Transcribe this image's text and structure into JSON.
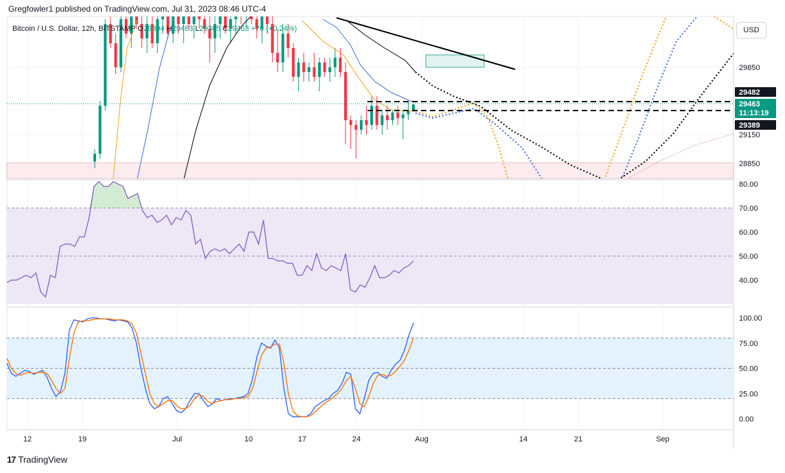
{
  "header": {
    "publish_line": "Gregfowler1 published on TradingView.com, Jul 31, 2023 08:46 UTC-4",
    "symbol": "Bitcoin / U.S. Dollar, 12h, BITSTAMP",
    "o_label": "O",
    "o_value": "29394",
    "h_label": "H",
    "h_value": "29463",
    "l_label": "L",
    "l_value": "29385",
    "c_label": "C",
    "c_value": "29463",
    "change": "+70 (+0.24%)",
    "currency": "USD"
  },
  "footer": {
    "brand": "TradingView",
    "logo_icon": "tradingview-logo-icon"
  },
  "colors": {
    "up": "#089981",
    "down": "#f23645",
    "rsi": "#7e57c2",
    "rsi_band": "#ede7f6",
    "stoch_k": "#2962ff",
    "stoch_d": "#ff6d00",
    "stoch_band": "#e3f2fd",
    "sma_fast": "#f7a21b",
    "sma_mid": "#3d6fe0",
    "sma_slow": "#000000",
    "forecast_red": "#e0606a",
    "tag_dark": "#131722",
    "tag_current": "#089981"
  },
  "chart_data": [
    {
      "type": "candlestick",
      "pane": "price",
      "x_ticks": [
        "12",
        "19",
        "Jul",
        "10",
        "17",
        "24",
        "Aug",
        "14",
        "21",
        "Sep"
      ],
      "y_ticks": [
        "29850",
        "29150",
        "28850"
      ],
      "price_tags": [
        {
          "label": "29482",
          "style": "dark"
        },
        {
          "label": "29463",
          "sublabel": "11:13:19",
          "style": "current"
        },
        {
          "label": "29389",
          "style": "dark"
        }
      ],
      "levels": [
        29482,
        29389
      ],
      "candles": [
        {
          "o": 28870,
          "h": 29000,
          "l": 28800,
          "c": 28950
        },
        {
          "o": 28950,
          "h": 29500,
          "l": 28900,
          "c": 29450
        },
        {
          "o": 29450,
          "h": 30350,
          "l": 29400,
          "c": 30300
        },
        {
          "o": 30300,
          "h": 30500,
          "l": 30050,
          "c": 30100
        },
        {
          "o": 30100,
          "h": 30200,
          "l": 29780,
          "c": 29850
        },
        {
          "o": 29850,
          "h": 30400,
          "l": 29800,
          "c": 30350
        },
        {
          "o": 30350,
          "h": 30500,
          "l": 30150,
          "c": 30200
        },
        {
          "o": 30200,
          "h": 30500,
          "l": 30050,
          "c": 30400
        },
        {
          "o": 30400,
          "h": 30550,
          "l": 30250,
          "c": 30300
        },
        {
          "o": 30300,
          "h": 30450,
          "l": 30050,
          "c": 30150
        },
        {
          "o": 30150,
          "h": 30400,
          "l": 30000,
          "c": 30300
        },
        {
          "o": 30300,
          "h": 30500,
          "l": 30050,
          "c": 30100
        },
        {
          "o": 30100,
          "h": 30450,
          "l": 30000,
          "c": 30350
        },
        {
          "o": 30350,
          "h": 30550,
          "l": 30200,
          "c": 30450
        },
        {
          "o": 30450,
          "h": 30550,
          "l": 30150,
          "c": 30200
        },
        {
          "o": 30200,
          "h": 30500,
          "l": 30100,
          "c": 30380
        },
        {
          "o": 30380,
          "h": 30550,
          "l": 30200,
          "c": 30300
        },
        {
          "o": 30300,
          "h": 30550,
          "l": 30100,
          "c": 30450
        },
        {
          "o": 30450,
          "h": 30550,
          "l": 30250,
          "c": 30300
        },
        {
          "o": 30300,
          "h": 30500,
          "l": 30150,
          "c": 30400
        },
        {
          "o": 30400,
          "h": 30550,
          "l": 30250,
          "c": 30350
        },
        {
          "o": 30350,
          "h": 30500,
          "l": 30200,
          "c": 30250
        },
        {
          "o": 30250,
          "h": 30500,
          "l": 29900,
          "c": 30150
        },
        {
          "o": 30150,
          "h": 30400,
          "l": 30000,
          "c": 30300
        },
        {
          "o": 30300,
          "h": 30550,
          "l": 30150,
          "c": 30400
        },
        {
          "o": 30400,
          "h": 30550,
          "l": 30200,
          "c": 30250
        },
        {
          "o": 30250,
          "h": 30500,
          "l": 30100,
          "c": 30350
        },
        {
          "o": 30350,
          "h": 30550,
          "l": 30200,
          "c": 30450
        },
        {
          "o": 30450,
          "h": 30550,
          "l": 30300,
          "c": 30400
        },
        {
          "o": 30400,
          "h": 30550,
          "l": 30250,
          "c": 30500
        },
        {
          "o": 30500,
          "h": 30550,
          "l": 30300,
          "c": 30350
        },
        {
          "o": 30350,
          "h": 30550,
          "l": 30150,
          "c": 30250
        },
        {
          "o": 30250,
          "h": 30500,
          "l": 30100,
          "c": 30400
        },
        {
          "o": 30400,
          "h": 30550,
          "l": 30200,
          "c": 30300
        },
        {
          "o": 30300,
          "h": 30450,
          "l": 29900,
          "c": 30000
        },
        {
          "o": 30000,
          "h": 30250,
          "l": 29800,
          "c": 29900
        },
        {
          "o": 29900,
          "h": 30300,
          "l": 29800,
          "c": 30200
        },
        {
          "o": 30200,
          "h": 30300,
          "l": 29950,
          "c": 30050
        },
        {
          "o": 30050,
          "h": 30100,
          "l": 29700,
          "c": 29750
        },
        {
          "o": 29750,
          "h": 29950,
          "l": 29600,
          "c": 29900
        },
        {
          "o": 29900,
          "h": 30000,
          "l": 29700,
          "c": 29800
        },
        {
          "o": 29800,
          "h": 29900,
          "l": 29700,
          "c": 29850
        },
        {
          "o": 29850,
          "h": 30000,
          "l": 29700,
          "c": 29750
        },
        {
          "o": 29750,
          "h": 29950,
          "l": 29600,
          "c": 29900
        },
        {
          "o": 29900,
          "h": 29950,
          "l": 29750,
          "c": 29800
        },
        {
          "o": 29800,
          "h": 29950,
          "l": 29700,
          "c": 29850
        },
        {
          "o": 29850,
          "h": 30050,
          "l": 29750,
          "c": 29950
        },
        {
          "o": 29950,
          "h": 30050,
          "l": 29750,
          "c": 29800
        },
        {
          "o": 29800,
          "h": 29900,
          "l": 29050,
          "c": 29300
        },
        {
          "o": 29300,
          "h": 29350,
          "l": 29000,
          "c": 29250
        },
        {
          "o": 29250,
          "h": 29300,
          "l": 28900,
          "c": 29200
        },
        {
          "o": 29200,
          "h": 29350,
          "l": 29150,
          "c": 29300
        },
        {
          "o": 29300,
          "h": 29450,
          "l": 29150,
          "c": 29250
        },
        {
          "o": 29250,
          "h": 29550,
          "l": 29200,
          "c": 29450
        },
        {
          "o": 29450,
          "h": 29550,
          "l": 29200,
          "c": 29250
        },
        {
          "o": 29250,
          "h": 29400,
          "l": 29150,
          "c": 29350
        },
        {
          "o": 29350,
          "h": 29450,
          "l": 29200,
          "c": 29300
        },
        {
          "o": 29300,
          "h": 29400,
          "l": 29250,
          "c": 29380
        },
        {
          "o": 29380,
          "h": 29450,
          "l": 29250,
          "c": 29320
        },
        {
          "o": 29320,
          "h": 29400,
          "l": 29100,
          "c": 29360
        },
        {
          "o": 29360,
          "h": 29500,
          "l": 29300,
          "c": 29394
        },
        {
          "o": 29394,
          "h": 29463,
          "l": 29385,
          "c": 29463
        }
      ]
    },
    {
      "type": "line",
      "pane": "rsi",
      "y_ticks": [
        "80.00",
        "70.00",
        "60.00",
        "50.00",
        "40.00"
      ],
      "band": [
        30,
        70
      ],
      "midline": 50,
      "values": [
        39,
        40,
        40,
        41,
        42,
        41,
        43,
        35,
        33,
        42,
        41,
        54,
        55,
        55,
        54,
        58,
        58,
        66,
        79,
        81,
        79,
        79,
        81,
        80,
        79,
        74,
        75,
        76,
        69,
        66,
        67,
        64,
        65,
        67,
        63,
        66,
        65,
        69,
        67,
        55,
        57,
        49,
        52,
        53,
        52,
        53,
        51,
        53,
        55,
        52,
        60,
        60,
        55,
        65,
        49,
        49,
        48,
        48,
        47,
        47,
        42,
        42,
        46,
        44,
        51,
        45,
        44,
        46,
        45,
        44,
        51,
        36,
        35,
        38,
        37,
        41,
        46,
        41,
        41,
        42,
        44,
        43,
        45,
        46,
        48
      ],
      "ylim": [
        30,
        82
      ]
    },
    {
      "type": "line",
      "pane": "stochastic",
      "y_ticks": [
        "100.00",
        "75.00",
        "50.00",
        "25.00",
        "0.00"
      ],
      "band": [
        20,
        80
      ],
      "midline": 50,
      "series": [
        {
          "key": "k",
          "values": [
            55,
            45,
            42,
            45,
            48,
            47,
            44,
            46,
            48,
            41,
            30,
            22,
            27,
            45,
            88,
            98,
            97,
            96,
            99,
            100,
            100,
            99,
            99,
            98,
            97,
            98,
            97,
            96,
            90,
            75,
            50,
            30,
            15,
            10,
            12,
            20,
            22,
            15,
            8,
            6,
            10,
            18,
            25,
            25,
            18,
            12,
            15,
            20,
            18,
            19,
            20,
            20,
            21,
            22,
            25,
            40,
            62,
            75,
            72,
            70,
            78,
            70,
            30,
            5,
            2,
            2,
            2,
            2,
            5,
            12,
            15,
            18,
            20,
            25,
            28,
            35,
            46,
            44,
            10,
            5,
            20,
            38,
            45,
            46,
            42,
            40,
            48,
            54,
            58,
            68,
            83,
            95
          ]
        },
        {
          "key": "d",
          "values": [
            60,
            50,
            45,
            43,
            45,
            46,
            45,
            46,
            46,
            45,
            38,
            30,
            25,
            30,
            60,
            85,
            96,
            97,
            97,
            98,
            99,
            99,
            99,
            99,
            98,
            98,
            98,
            97,
            94,
            85,
            65,
            45,
            25,
            15,
            12,
            15,
            18,
            18,
            13,
            10,
            10,
            13,
            20,
            24,
            22,
            17,
            15,
            17,
            18,
            19,
            19,
            20,
            20,
            21,
            22,
            30,
            47,
            63,
            70,
            71,
            74,
            74,
            55,
            25,
            8,
            3,
            2,
            2,
            3,
            7,
            11,
            15,
            18,
            21,
            25,
            30,
            38,
            42,
            30,
            15,
            12,
            22,
            35,
            43,
            44,
            42,
            43,
            47,
            52,
            58,
            68,
            80
          ]
        }
      ],
      "ylim": [
        -8,
        105
      ]
    }
  ]
}
